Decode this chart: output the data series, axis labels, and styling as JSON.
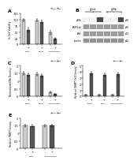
{
  "background_color": "#ffffff",
  "panel_A": {
    "label": "A",
    "title_ctrl": "CtpCont",
    "title_grp": "gERb",
    "color_ctrl": "#cccccc",
    "color_grp": "#555555",
    "ylabel": "% Cell Viability",
    "ylim": [
      0,
      125
    ],
    "yticks": [
      0,
      25,
      50,
      75,
      100,
      125
    ],
    "xticklabels": [
      "-",
      "+",
      "-",
      "+",
      "-",
      "+"
    ],
    "bars": [
      100,
      60,
      98,
      92,
      48,
      22
    ],
    "errors": [
      5,
      7,
      5,
      6,
      8,
      4
    ],
    "group_labels": [
      "KCHDs",
      "DMSO",
      "Rhododendron"
    ],
    "n_groups": 3
  },
  "panel_B": {
    "label": "B",
    "wb_row_labels": [
      "pERb",
      "PREF1ab",
      "ERb",
      "b-actin"
    ],
    "wb_row_right": [
      "p60",
      "p60",
      "p52",
      "p42"
    ],
    "n_lanes": 6,
    "col_labels": [
      "gCont",
      "gERb"
    ],
    "pERb_intensities": [
      0.05,
      0.05,
      0.85,
      0.05,
      0.05,
      0.85
    ],
    "PREF_intensities": [
      0.45,
      0.45,
      0.45,
      0.45,
      0.45,
      0.45
    ],
    "ERb_intensities": [
      0.45,
      0.45,
      0.45,
      0.45,
      0.45,
      0.45
    ],
    "bactin_intensities": [
      0.5,
      0.5,
      0.5,
      0.5,
      0.5,
      0.5
    ]
  },
  "panel_C": {
    "label": "C",
    "title_ctrl": "CtpCont",
    "title_grp": "gERb",
    "color_ctrl": "#cccccc",
    "color_grp": "#555555",
    "ylabel": "Normalized ERb Density",
    "ylim": [
      0,
      2.0
    ],
    "yticks": [
      0,
      0.5,
      1.0,
      1.5,
      2.0
    ],
    "xticklabels": [
      "-",
      "+",
      "-",
      "+",
      "-",
      "+"
    ],
    "bars": [
      1.5,
      1.4,
      1.45,
      1.35,
      0.25,
      0.15
    ],
    "errors": [
      0.12,
      0.12,
      0.1,
      0.1,
      0.05,
      0.04
    ],
    "n_groups": 3
  },
  "panel_D": {
    "label": "D",
    "title_ctrl": "CtpCont",
    "title_grp": "gERb",
    "color_ctrl": "#cccccc",
    "color_grp": "#555555",
    "ylabel": "Relative DNMT Cell Density",
    "ylim": [
      0,
      5
    ],
    "yticks": [
      0,
      1,
      2,
      3,
      4,
      5
    ],
    "xticklabels": [
      "-",
      "+",
      "-",
      "+",
      "-",
      "+"
    ],
    "bars": [
      0.25,
      3.8,
      0.25,
      3.5,
      0.25,
      3.6
    ],
    "errors": [
      0.04,
      0.25,
      0.04,
      0.25,
      0.04,
      0.25
    ],
    "n_groups": 3
  },
  "panel_E": {
    "label": "E",
    "title_ctrl": "CtpCont",
    "title_grp": "gERb",
    "color_ctrl": "#cccccc",
    "color_grp": "#555555",
    "ylabel": "Relative PARP Density",
    "ylim": [
      0,
      2.0
    ],
    "yticks": [
      0,
      0.5,
      1.0,
      1.5,
      2.0
    ],
    "xticklabels": [
      "-",
      "+",
      "-",
      "+"
    ],
    "bars": [
      1.5,
      1.48,
      1.5,
      1.5
    ],
    "errors": [
      0.08,
      0.08,
      0.08,
      0.08
    ],
    "n_groups": 2
  }
}
